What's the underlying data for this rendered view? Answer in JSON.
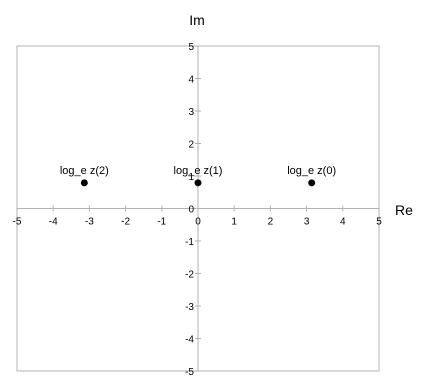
{
  "chart_data": {
    "type": "scatter",
    "xlabel": "Re",
    "ylabel": "Im",
    "xlim": [
      -5,
      5
    ],
    "ylim": [
      -5,
      5
    ],
    "xticks": [
      -5,
      -4,
      -3,
      -2,
      -1,
      0,
      1,
      2,
      3,
      4,
      5
    ],
    "yticks": [
      -5,
      -4,
      -3,
      -2,
      -1,
      0,
      1,
      2,
      3,
      4,
      5
    ],
    "grid": false,
    "points": [
      {
        "label": "log_e z(2)",
        "x": -3.14,
        "y": 0.79
      },
      {
        "label": "log_e z(1)",
        "x": 0.0,
        "y": 0.79
      },
      {
        "label": "log_e z(0)",
        "x": 3.14,
        "y": 0.79
      }
    ]
  }
}
